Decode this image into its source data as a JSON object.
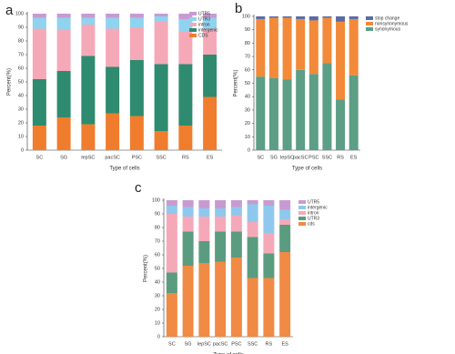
{
  "chart_data": [
    {
      "type": "bar",
      "stacked": true,
      "label": "a",
      "ylabel": "Percent(%)",
      "xlabel": "Type of cells",
      "categories": [
        "SC",
        "SG",
        "lepSC",
        "pacSC",
        "PSC",
        "SSC",
        "RS",
        "ES"
      ],
      "ylim": [
        0,
        100
      ],
      "yticks": [
        0,
        10,
        20,
        30,
        40,
        50,
        60,
        70,
        80,
        90,
        100
      ],
      "legend": "upper right",
      "series": [
        {
          "name": "UTR5",
          "color": "#c79bd1",
          "values": [
            3,
            3,
            3,
            3,
            3,
            2,
            4,
            3
          ]
        },
        {
          "name": "UTR3",
          "color": "#8fd3ef",
          "values": [
            8,
            9,
            5,
            8,
            7,
            4,
            9,
            8
          ]
        },
        {
          "name": "intron",
          "color": "#f5a9b8",
          "values": [
            37,
            30,
            23,
            28,
            24,
            31,
            24,
            19
          ]
        },
        {
          "name": "intergenic",
          "color": "#2e8b6f",
          "values": [
            34,
            34,
            50,
            34,
            41,
            49,
            45,
            31
          ]
        },
        {
          "name": "CDS",
          "color": "#f07d2e",
          "values": [
            18,
            24,
            19,
            27,
            25,
            14,
            18,
            39
          ]
        }
      ]
    },
    {
      "type": "bar",
      "stacked": true,
      "label": "b",
      "ylabel": "Percent(%)",
      "xlabel": "Type of cells",
      "categories": [
        "SC",
        "SG",
        "lepSC",
        "pacSC",
        "PSC",
        "SSC",
        "RS",
        "ES"
      ],
      "ylim": [
        0,
        100
      ],
      "yticks": [
        0,
        10,
        20,
        30,
        40,
        50,
        60,
        70,
        80,
        90,
        100
      ],
      "legend": "right",
      "series": [
        {
          "name": "stop change",
          "color": "#5b6ba3",
          "values": [
            2,
            1,
            1,
            2,
            3,
            1,
            4,
            2
          ]
        },
        {
          "name": "nonsynonymous",
          "color": "#f28a3a",
          "values": [
            43,
            45,
            46,
            38,
            40,
            34,
            58,
            42
          ]
        },
        {
          "name": "synonymous",
          "color": "#5c9e86",
          "values": [
            55,
            54,
            53,
            60,
            57,
            65,
            38,
            56
          ]
        }
      ]
    },
    {
      "type": "bar",
      "stacked": true,
      "label": "c",
      "ylabel": "Percent(%)",
      "xlabel": "Type of cells",
      "categories": [
        "SC",
        "SG",
        "lepSC",
        "pacSC",
        "PSC",
        "SSC",
        "RS",
        "ES"
      ],
      "ylim": [
        0,
        100
      ],
      "yticks": [
        0,
        10,
        20,
        30,
        40,
        50,
        60,
        70,
        80,
        90,
        100
      ],
      "legend": "right",
      "series": [
        {
          "name": "UTR5",
          "color": "#c79bd1",
          "values": [
            4,
            5,
            6,
            6,
            5,
            3,
            4,
            7
          ]
        },
        {
          "name": "intergenic",
          "color": "#8fc8ee",
          "values": [
            6,
            7,
            6,
            6,
            6,
            13,
            20,
            7
          ]
        },
        {
          "name": "intron",
          "color": "#f5a9b8",
          "values": [
            43,
            11,
            18,
            11,
            12,
            11,
            15,
            4
          ]
        },
        {
          "name": "UTR3",
          "color": "#5a9c7f",
          "values": [
            15,
            25,
            16,
            22,
            19,
            30,
            18,
            20
          ]
        },
        {
          "name": "cds",
          "color": "#f08a45",
          "values": [
            32,
            52,
            54,
            55,
            58,
            43,
            43,
            62
          ]
        }
      ]
    }
  ]
}
